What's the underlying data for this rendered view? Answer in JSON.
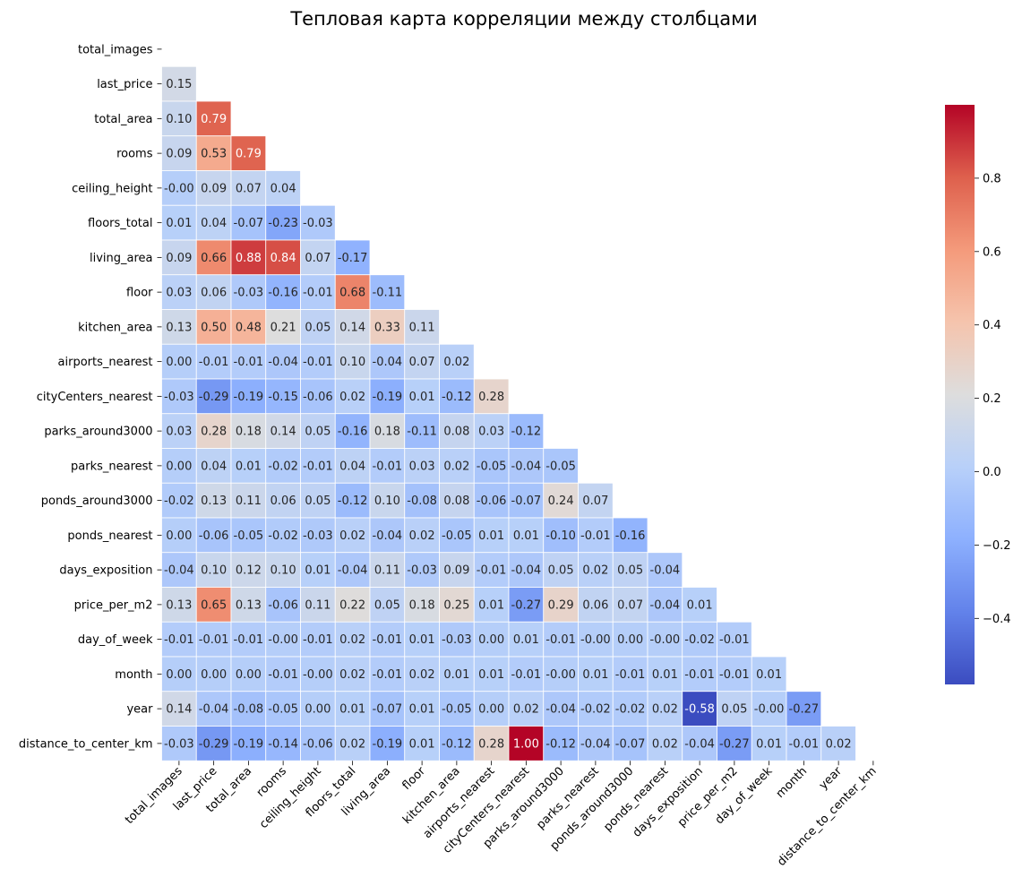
{
  "chart_data": {
    "type": "heatmap",
    "title": "Тепловая карта корреляции между столбцами",
    "colormap": "coolwarm",
    "mask": "upper-triangle including diagonal",
    "grid_line_color": "#ffffff",
    "variables": [
      "total_images",
      "last_price",
      "total_area",
      "rooms",
      "ceiling_height",
      "floors_total",
      "living_area",
      "floor",
      "kitchen_area",
      "airports_nearest",
      "cityCenters_nearest",
      "parks_around3000",
      "parks_nearest",
      "ponds_around3000",
      "ponds_nearest",
      "days_exposition",
      "price_per_m2",
      "day_of_week",
      "month",
      "year",
      "distance_to_center_km"
    ],
    "matrix": [
      [],
      [
        0.15
      ],
      [
        0.1,
        0.79
      ],
      [
        0.09,
        0.53,
        0.79
      ],
      [
        -0.0,
        0.09,
        0.07,
        0.04
      ],
      [
        0.01,
        0.04,
        -0.07,
        -0.23,
        -0.03
      ],
      [
        0.09,
        0.66,
        0.88,
        0.84,
        0.07,
        -0.17
      ],
      [
        0.03,
        0.06,
        -0.03,
        -0.16,
        -0.01,
        0.68,
        -0.11
      ],
      [
        0.13,
        0.5,
        0.48,
        0.21,
        0.05,
        0.14,
        0.33,
        0.11
      ],
      [
        0.0,
        -0.01,
        -0.01,
        -0.04,
        -0.01,
        0.1,
        -0.04,
        0.07,
        0.02
      ],
      [
        -0.03,
        -0.29,
        -0.19,
        -0.15,
        -0.06,
        0.02,
        -0.19,
        0.01,
        -0.12,
        0.28
      ],
      [
        0.03,
        0.28,
        0.18,
        0.14,
        0.05,
        -0.16,
        0.18,
        -0.11,
        0.08,
        0.03,
        -0.12
      ],
      [
        0.0,
        0.04,
        0.01,
        -0.02,
        -0.01,
        0.04,
        -0.01,
        0.03,
        0.02,
        -0.05,
        -0.04,
        -0.05
      ],
      [
        -0.02,
        0.13,
        0.11,
        0.06,
        0.05,
        -0.12,
        0.1,
        -0.08,
        0.08,
        -0.06,
        -0.07,
        0.24,
        0.07
      ],
      [
        0.0,
        -0.06,
        -0.05,
        -0.02,
        -0.03,
        0.02,
        -0.04,
        0.02,
        -0.05,
        0.01,
        0.01,
        -0.1,
        -0.01,
        -0.16
      ],
      [
        -0.04,
        0.1,
        0.12,
        0.1,
        0.01,
        -0.04,
        0.11,
        -0.03,
        0.09,
        -0.01,
        -0.04,
        0.05,
        0.02,
        0.05,
        -0.04
      ],
      [
        0.13,
        0.65,
        0.13,
        -0.06,
        0.11,
        0.22,
        0.05,
        0.18,
        0.25,
        0.01,
        -0.27,
        0.29,
        0.06,
        0.07,
        -0.04,
        0.01
      ],
      [
        -0.01,
        -0.01,
        -0.01,
        -0.0,
        -0.01,
        0.02,
        -0.01,
        0.01,
        -0.03,
        0.0,
        0.01,
        -0.01,
        -0.0,
        0.0,
        -0.0,
        -0.02,
        -0.01
      ],
      [
        0.0,
        0.0,
        0.0,
        -0.01,
        -0.0,
        0.02,
        -0.01,
        0.02,
        0.01,
        0.01,
        -0.01,
        -0.0,
        0.01,
        -0.01,
        0.01,
        -0.01,
        -0.01,
        0.01
      ],
      [
        0.14,
        -0.04,
        -0.08,
        -0.05,
        0.0,
        0.01,
        -0.07,
        0.01,
        -0.05,
        0.0,
        0.02,
        -0.04,
        -0.02,
        -0.02,
        0.02,
        -0.58,
        0.05,
        -0.0,
        -0.27
      ],
      [
        -0.03,
        -0.29,
        -0.19,
        -0.14,
        -0.06,
        0.02,
        -0.19,
        0.01,
        -0.12,
        0.28,
        1.0,
        -0.12,
        -0.04,
        -0.07,
        0.02,
        -0.04,
        -0.27,
        0.01,
        -0.01,
        0.02
      ]
    ],
    "colorbar": {
      "vmin": -0.58,
      "vmax": 1.0,
      "ticks": [
        -0.4,
        -0.2,
        0.0,
        0.2,
        0.4,
        0.6,
        0.8
      ],
      "tick_labels": [
        "−0.4",
        "−0.2",
        "0.0",
        "0.2",
        "0.4",
        "0.6",
        "0.8"
      ]
    }
  }
}
